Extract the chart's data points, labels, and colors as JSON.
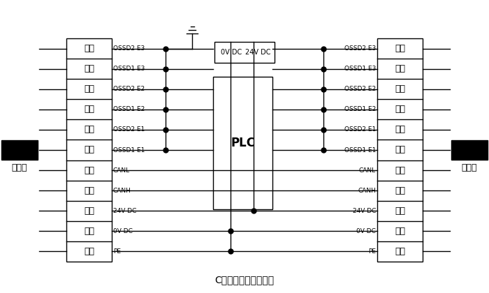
{
  "title": "C型传感器单独接线图",
  "left_labels": [
    "紫色",
    "青色",
    "灰色",
    "白色",
    "棕色",
    "蓝色",
    "黑色",
    "黄色",
    "红色",
    "绿色",
    "花色"
  ],
  "right_labels": [
    "紫色",
    "青色",
    "灰色",
    "白色",
    "棕色",
    "蓝色",
    "黑色",
    "黄色",
    "红色",
    "绿色",
    "花色"
  ],
  "left_signals": [
    "OSSD2 E3",
    "OSSD1 E3",
    "OSSD2 E2",
    "OSSD1 E2",
    "OSSD2 E1",
    "OSSD1 E1",
    "CANL",
    "CANH",
    "24V DC",
    "0V DC",
    "PE"
  ],
  "right_signals": [
    "OSSD2 E3",
    "OSSD1 E3",
    "OSSD2 E2",
    "OSSD1 E2",
    "OSSD2 E1",
    "OSSD1 E1",
    "CANL",
    "CANH",
    "24V DC",
    "0V DC",
    "PE"
  ],
  "plc_label": "PLC",
  "emitter_label": "发射器",
  "receiver_label": "接收器",
  "power_label_0v": "0V DC",
  "power_label_24v": "24V DC",
  "bg_color": "#ffffff",
  "line_color": "#000000",
  "dot_color": "#000000",
  "font_size_labels": 9,
  "font_size_signals": 6.5,
  "font_size_title": 10,
  "font_size_plc": 12,
  "font_size_device": 9,
  "font_size_power": 7
}
